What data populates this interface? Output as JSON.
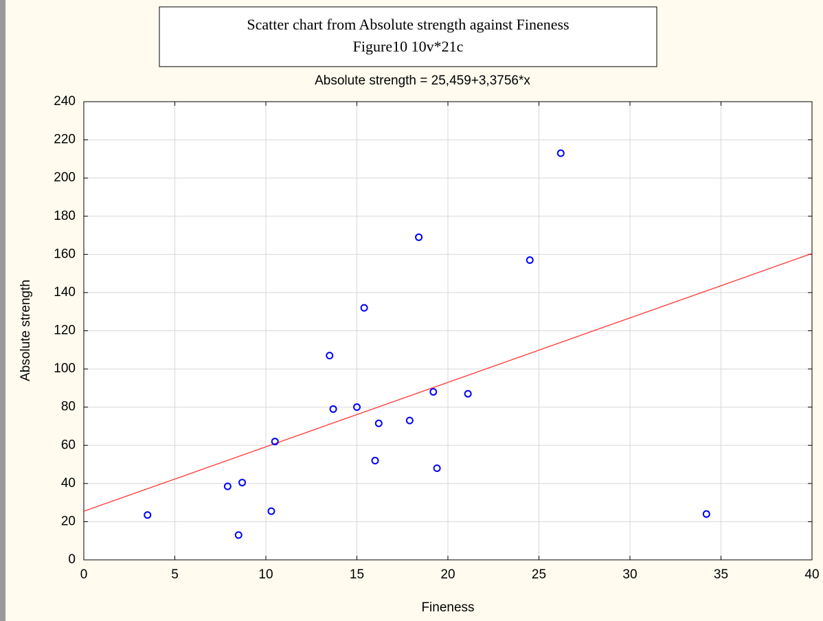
{
  "chart_data": {
    "type": "scatter",
    "title": "Scatter chart from Absolute strength against Fineness",
    "subtitle": "Figure10 10v*21c",
    "equation": "Absolute strength = 25,459+3,3756*x",
    "x_label": "Fineness",
    "y_label": "Absolute strength",
    "x": [
      3.5,
      7.9,
      8.5,
      8.7,
      10.3,
      10.5,
      13.5,
      13.7,
      15.0,
      15.4,
      16.0,
      16.2,
      17.9,
      18.4,
      19.2,
      19.4,
      21.1,
      24.5,
      26.2,
      34.2
    ],
    "values": [
      23.5,
      38.5,
      13,
      40.5,
      25.5,
      62,
      107,
      79,
      80,
      132,
      52,
      71.5,
      73,
      169,
      88,
      48,
      87,
      157,
      213,
      24
    ],
    "color": "#0000ff",
    "fit": {
      "intercept": 25.459,
      "slope": 3.3756,
      "color": "#ff3333"
    },
    "xlim": [
      0,
      40
    ],
    "xticks": [
      0,
      5,
      10,
      15,
      20,
      25,
      30,
      35,
      40
    ],
    "ylim": [
      0,
      240
    ],
    "yticks": [
      0,
      20,
      40,
      60,
      80,
      100,
      120,
      140,
      160,
      180,
      200,
      220,
      240
    ],
    "grid": true
  }
}
